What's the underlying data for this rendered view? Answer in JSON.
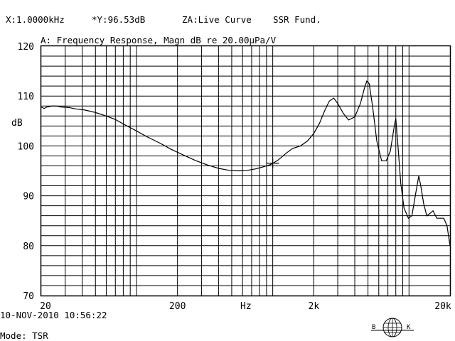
{
  "header": {
    "x_readout": "X:1.0000kHz",
    "y_readout": "*Y:96.53dB",
    "zone": "ZA:Live Curve",
    "mode_tag": "SSR Fund."
  },
  "footer": {
    "date": "10-NOV-2010 10:56:22",
    "mode": "Mode: TSR"
  },
  "logo": {
    "letters": [
      "B",
      "K"
    ]
  },
  "chart_data": {
    "type": "line",
    "title": "A: Frequency Response, Magn dB re 20.00µPa/V",
    "ylabel": "dB",
    "xlabel": "Hz",
    "xscale": "log",
    "xlim": [
      20,
      20000
    ],
    "ylim": [
      70,
      120
    ],
    "y_ticks": [
      70,
      80,
      90,
      100,
      110,
      120
    ],
    "x_tick_labels": [
      {
        "value": 20,
        "label": "20"
      },
      {
        "value": 200,
        "label": "200"
      },
      {
        "value": 2000,
        "label": "2k"
      },
      {
        "value": 20000,
        "label": "20k"
      }
    ],
    "grid": true,
    "cursor": {
      "x": 1000,
      "y": 96.53
    },
    "series": [
      {
        "x": [
          20,
          21,
          22,
          24,
          26,
          28,
          32,
          36,
          40,
          45,
          50,
          60,
          70,
          80,
          100,
          120,
          150,
          180,
          220,
          270,
          330,
          400,
          480,
          560,
          650,
          750,
          850,
          950,
          1000,
          1100,
          1250,
          1400,
          1600,
          1800,
          2000,
          2200,
          2400,
          2600,
          2800,
          3000,
          3300,
          3600,
          4000,
          4400,
          4700,
          4900,
          5100,
          5400,
          5800,
          6300,
          6800,
          7300,
          7800,
          8000,
          8300,
          8700,
          9200,
          9900,
          10500,
          11200,
          11800,
          12200,
          12800,
          13500,
          14300,
          15000,
          16000,
          17000,
          18000,
          19000,
          20000
        ],
        "y": [
          107.8,
          107.5,
          107.8,
          108.0,
          108.0,
          107.8,
          107.7,
          107.4,
          107.3,
          107.0,
          106.7,
          106.0,
          105.3,
          104.4,
          103.0,
          101.8,
          100.5,
          99.3,
          98.2,
          97.1,
          96.2,
          95.5,
          95.1,
          95.0,
          95.1,
          95.4,
          95.8,
          96.2,
          96.5,
          97.2,
          98.5,
          99.5,
          100.0,
          101.0,
          102.5,
          104.5,
          107.0,
          109.0,
          109.6,
          108.5,
          106.5,
          105.2,
          105.8,
          108.5,
          111.5,
          113.0,
          112.5,
          108.0,
          101.0,
          97.0,
          97.0,
          99.0,
          104.0,
          105.5,
          100.0,
          92.5,
          87.5,
          85.5,
          86.0,
          90.5,
          94.0,
          92.0,
          88.5,
          86.0,
          86.5,
          87.0,
          85.5,
          85.5,
          85.5,
          84.0,
          80.0
        ]
      }
    ]
  }
}
